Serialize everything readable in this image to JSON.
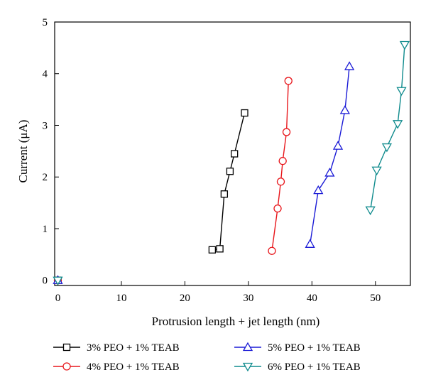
{
  "chart_data": {
    "type": "line",
    "xlabel": "Protrusion length + jet length (nm)",
    "ylabel": "Current (μA)",
    "xlim": [
      -0.5,
      55.5
    ],
    "ylim": [
      -0.1,
      5
    ],
    "xticks": [
      0,
      10,
      20,
      30,
      40,
      50
    ],
    "yticks": [
      0,
      1,
      2,
      3,
      4,
      5
    ],
    "legend_position": "bottom",
    "series": [
      {
        "name": "3% PEO + 1% TEAB",
        "color": "#000000",
        "marker": "square",
        "x": [
          24.3,
          25.5,
          26.2,
          27.1,
          27.8,
          29.4
        ],
        "y": [
          0.59,
          0.61,
          1.67,
          2.11,
          2.45,
          3.24
        ]
      },
      {
        "name": "4% PEO + 1% TEAB",
        "color": "#e8161b",
        "marker": "circle",
        "x": [
          33.7,
          34.6,
          35.1,
          35.4,
          36.0,
          36.3
        ],
        "y": [
          0.57,
          1.39,
          1.91,
          2.31,
          2.87,
          3.86
        ]
      },
      {
        "name": "5% PEO + 1% TEAB",
        "color": "#1a1ad6",
        "marker": "triangle-up",
        "x": [
          39.7,
          41.0,
          42.8,
          44.1,
          45.2,
          45.9
        ],
        "y": [
          0.7,
          1.74,
          2.08,
          2.6,
          3.29,
          4.14
        ]
      },
      {
        "name": "6% PEO + 1% TEAB",
        "color": "#0f8b8d",
        "marker": "triangle-down",
        "x": [
          49.2,
          50.2,
          51.8,
          53.5,
          54.1,
          54.6
        ],
        "y": [
          1.36,
          2.13,
          2.58,
          3.03,
          3.67,
          4.56
        ]
      }
    ],
    "origin_point": {
      "x": 0,
      "y": 0
    }
  }
}
